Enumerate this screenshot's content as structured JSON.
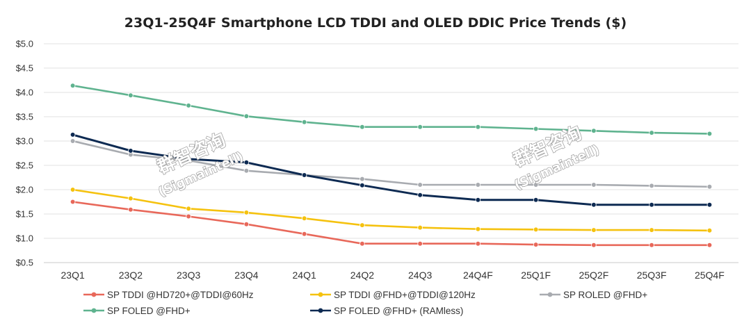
{
  "chart_data": {
    "type": "line",
    "title": "23Q1-25Q4F Smartphone LCD TDDI and OLED DDIC Price Trends ($)",
    "categories": [
      "23Q1",
      "23Q2",
      "23Q3",
      "23Q4",
      "24Q1",
      "24Q2",
      "24Q3",
      "24Q4F",
      "25Q1F",
      "25Q2F",
      "25Q3F",
      "25Q4F"
    ],
    "y_ticks": [
      "$0.5",
      "$1.0",
      "$1.5",
      "$2.0",
      "$2.5",
      "$3.0",
      "$3.5",
      "$4.0",
      "$4.5",
      "$5.0"
    ],
    "ylim": [
      0.5,
      5.0
    ],
    "grid": "horizontal",
    "legend_position": "bottom",
    "series": [
      {
        "name": "SP TDDI @HD720+@TDDI@60Hz",
        "color": "#e8685a",
        "values": [
          1.75,
          1.59,
          1.45,
          1.29,
          1.09,
          0.89,
          0.89,
          0.89,
          0.87,
          0.86,
          0.86,
          0.86
        ]
      },
      {
        "name": "SP TDDI @FHD+@TDDI@120Hz",
        "color": "#f5c20f",
        "values": [
          2.0,
          1.82,
          1.61,
          1.53,
          1.41,
          1.27,
          1.22,
          1.19,
          1.18,
          1.17,
          1.17,
          1.16
        ]
      },
      {
        "name": "SP ROLED @FHD+",
        "color": "#a8abb0",
        "values": [
          3.0,
          2.72,
          2.6,
          2.39,
          2.3,
          2.22,
          2.1,
          2.1,
          2.1,
          2.1,
          2.08,
          2.06
        ]
      },
      {
        "name": "SP FOLED @FHD+",
        "color": "#5fb38f",
        "values": [
          4.14,
          3.94,
          3.73,
          3.51,
          3.39,
          3.29,
          3.29,
          3.29,
          3.25,
          3.21,
          3.17,
          3.15
        ]
      },
      {
        "name": "SP FOLED @FHD+ (RAMless)",
        "color": "#0d2a52",
        "values": [
          3.13,
          2.8,
          2.63,
          2.56,
          2.3,
          2.09,
          1.89,
          1.79,
          1.79,
          1.69,
          1.69,
          1.69
        ]
      }
    ]
  },
  "watermarks": [
    {
      "brand": "群智咨询",
      "handle": "(Sigmaintell)"
    },
    {
      "brand": "群智咨询",
      "handle": "(Sigmaintell)"
    }
  ]
}
